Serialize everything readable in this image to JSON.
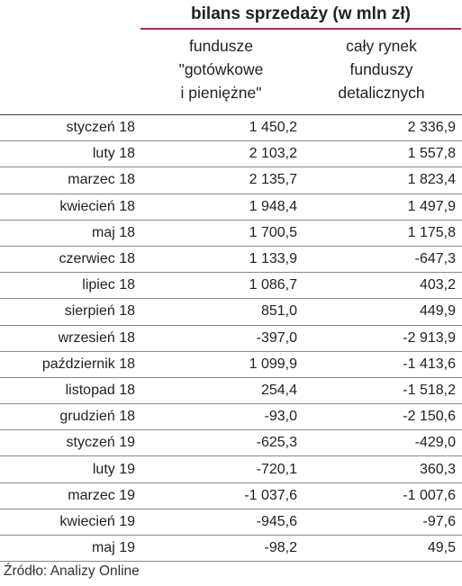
{
  "header": {
    "group_title": "bilans sprzedaży (w mln zł)",
    "col1_lines": [
      "fundusze",
      "\"gotówkowe",
      "i pieniężne\""
    ],
    "col2_lines": [
      "cały rynek",
      "funduszy",
      "detalicznych"
    ],
    "accent_color": "#b0255c"
  },
  "rows": [
    {
      "month": "styczeń 18",
      "v1": "1 450,2",
      "v2": "2 336,9"
    },
    {
      "month": "luty 18",
      "v1": "2 103,2",
      "v2": "1 557,8"
    },
    {
      "month": "marzec 18",
      "v1": "2 135,7",
      "v2": "1 823,4"
    },
    {
      "month": "kwiecień 18",
      "v1": "1 948,4",
      "v2": "1 497,9"
    },
    {
      "month": "maj 18",
      "v1": "1 700,5",
      "v2": "1 175,8"
    },
    {
      "month": "czerwiec 18",
      "v1": "1 133,9",
      "v2": "-647,3"
    },
    {
      "month": "lipiec 18",
      "v1": "1 086,7",
      "v2": "403,2"
    },
    {
      "month": "sierpień 18",
      "v1": "851,0",
      "v2": "449,9"
    },
    {
      "month": "wrzesień 18",
      "v1": "-397,0",
      "v2": "-2 913,9"
    },
    {
      "month": "październik 18",
      "v1": "1 099,9",
      "v2": "-1 413,6"
    },
    {
      "month": "listopad 18",
      "v1": "254,4",
      "v2": "-1 518,2"
    },
    {
      "month": "grudzień 18",
      "v1": "-93,0",
      "v2": "-2 150,6"
    },
    {
      "month": "styczeń 19",
      "v1": "-625,3",
      "v2": "-429,0"
    },
    {
      "month": "luty 19",
      "v1": "-720,1",
      "v2": "360,3"
    },
    {
      "month": "marzec 19",
      "v1": "-1 037,6",
      "v2": "-1 007,6"
    },
    {
      "month": "kwiecień 19",
      "v1": "-945,6",
      "v2": "-97,6"
    },
    {
      "month": "maj 19",
      "v1": "-98,2",
      "v2": "49,5"
    }
  ],
  "footer": {
    "source": "Źródło: Analizy Online"
  }
}
